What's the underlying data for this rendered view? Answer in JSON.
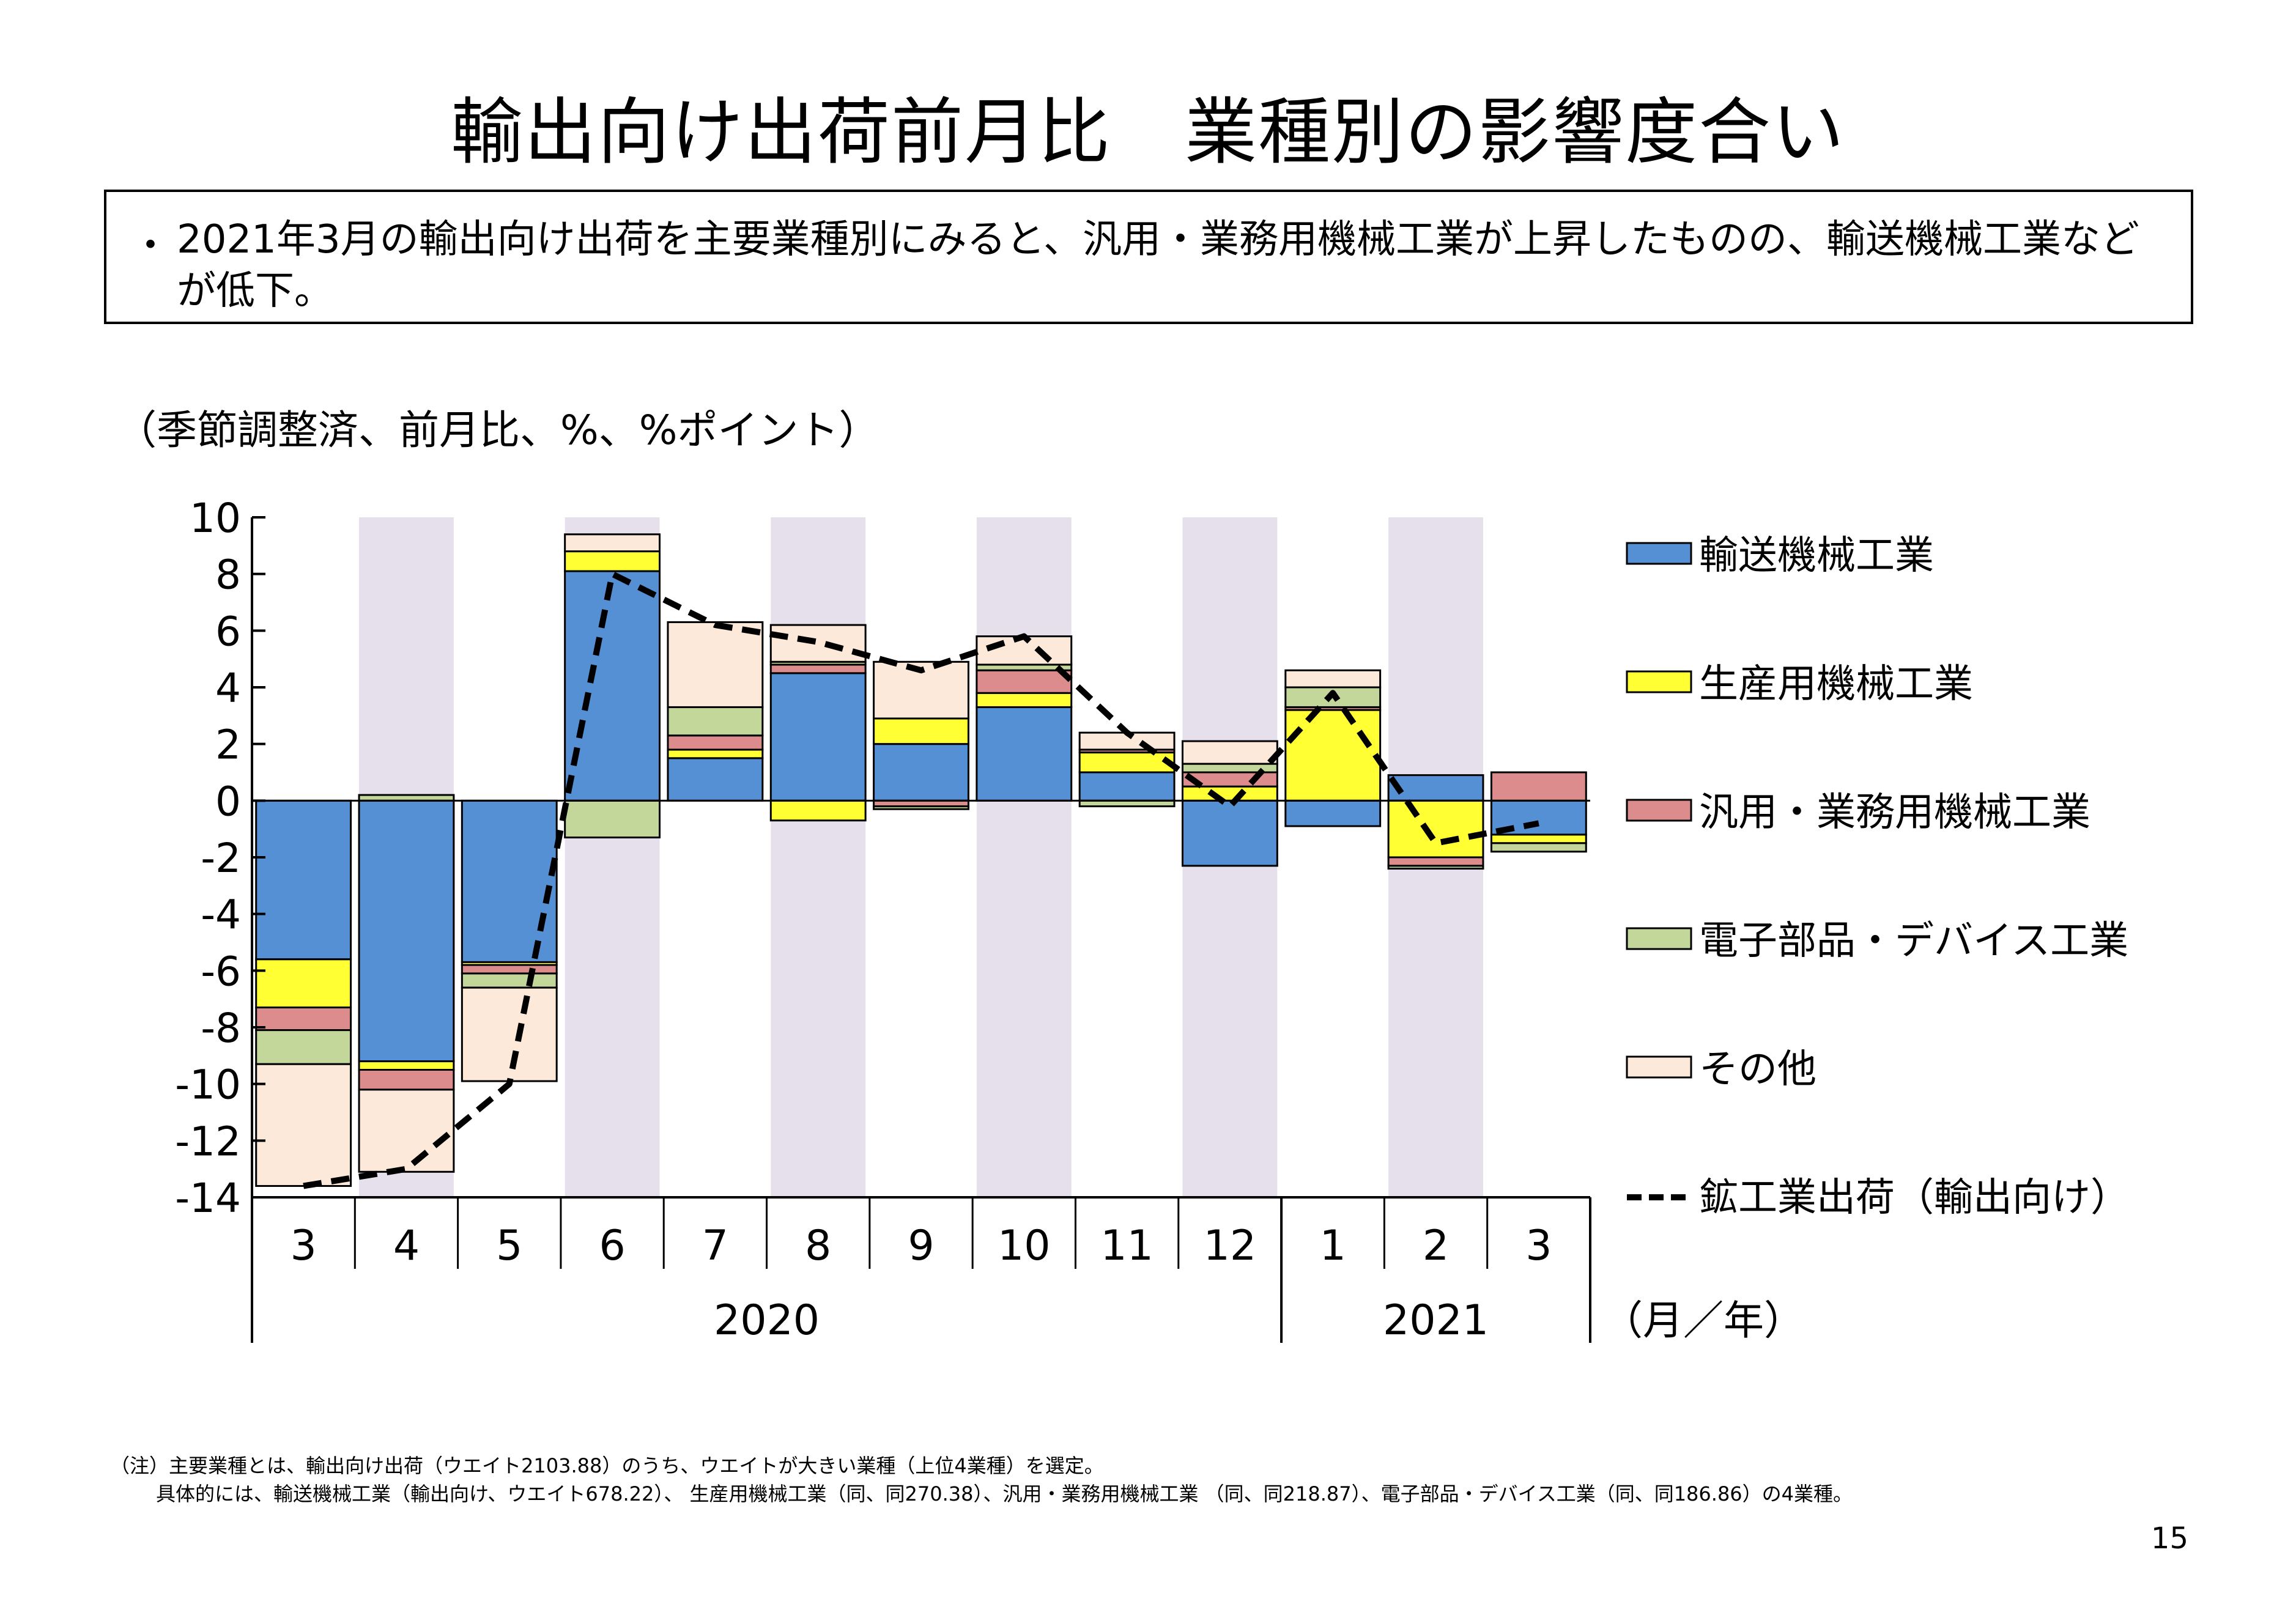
{
  "title": "輸出向け出荷前月比　業種別の影響度合い",
  "summary": {
    "bullet": "・",
    "text": "2021年3月の輸出向け出荷を主要業種別にみると、汎用・業務用機械工業が上昇したものの、輸送機械工業などが低下。"
  },
  "unit_label": "（季節調整済、前月比、%、%ポイント）",
  "colors": {
    "transport": "#5590d5",
    "production": "#ffff33",
    "general": "#dc8c8c",
    "electronic": "#c3d79b",
    "other": "#fde9d9",
    "shade": "#e6e0ec",
    "line": "#000000"
  },
  "chart_data": {
    "type": "bar",
    "stacked": true,
    "categories": [
      "3",
      "4",
      "5",
      "6",
      "7",
      "8",
      "9",
      "10",
      "11",
      "12",
      "1",
      "2",
      "3"
    ],
    "year_labels": [
      {
        "label": "2020",
        "start": 0,
        "end": 9
      },
      {
        "label": "2021",
        "start": 10,
        "end": 12
      }
    ],
    "x_unit_label": "（月／年）",
    "y_ticks": [
      10,
      8,
      6,
      4,
      2,
      0,
      -2,
      -4,
      -6,
      -8,
      -10,
      -12,
      -14
    ],
    "ylim": [
      -14,
      10
    ],
    "shaded_categories": [
      1,
      3,
      5,
      7,
      9,
      11
    ],
    "series": [
      {
        "name": "輸送機械工業",
        "key": "transport",
        "values": [
          -5.6,
          -9.2,
          -5.7,
          8.1,
          1.5,
          4.5,
          2.0,
          3.3,
          1.0,
          -2.3,
          -0.9,
          0.9,
          -1.2
        ]
      },
      {
        "name": "生産用機械工業",
        "key": "production",
        "values": [
          -1.7,
          -0.3,
          -0.1,
          0.7,
          0.3,
          -0.7,
          0.9,
          0.5,
          0.7,
          0.5,
          3.2,
          -2.0,
          -0.3
        ]
      },
      {
        "name": "汎用・業務用機械工業",
        "key": "general",
        "values": [
          -0.8,
          -0.7,
          -0.3,
          0.0,
          0.5,
          0.3,
          -0.2,
          0.8,
          0.1,
          0.5,
          0.1,
          -0.3,
          1.0
        ]
      },
      {
        "name": "電子部品・デバイス工業",
        "key": "electronic",
        "values": [
          -1.2,
          0.2,
          -0.5,
          -1.3,
          1.0,
          0.1,
          -0.1,
          0.2,
          -0.2,
          0.3,
          0.7,
          -0.1,
          -0.3
        ]
      },
      {
        "name": "その他",
        "key": "other",
        "values": [
          -4.3,
          -2.9,
          -3.3,
          0.6,
          3.0,
          1.3,
          2.0,
          1.0,
          0.6,
          0.8,
          0.6,
          0.0,
          0.0
        ]
      }
    ],
    "line": {
      "name": "鉱工業出荷（輸出向け）",
      "values": [
        -13.6,
        -13.0,
        -10.0,
        8.0,
        6.2,
        5.6,
        4.6,
        5.8,
        2.4,
        -0.2,
        3.8,
        -1.5,
        -0.8
      ]
    }
  },
  "notes": [
    "（注）主要業種とは、輸出向け出荷（ウエイト2103.88）のうち、ウエイトが大きい業種（上位4業種）を選定。",
    "具体的には、輸送機械工業（輸出向け、ウエイト678.22）、 生産用機械工業（同、同270.38）、汎用・業務用機械工業 （同、同218.87）、電子部品・デバイス工業（同、同186.86）の4業種。"
  ],
  "page_number": "15"
}
